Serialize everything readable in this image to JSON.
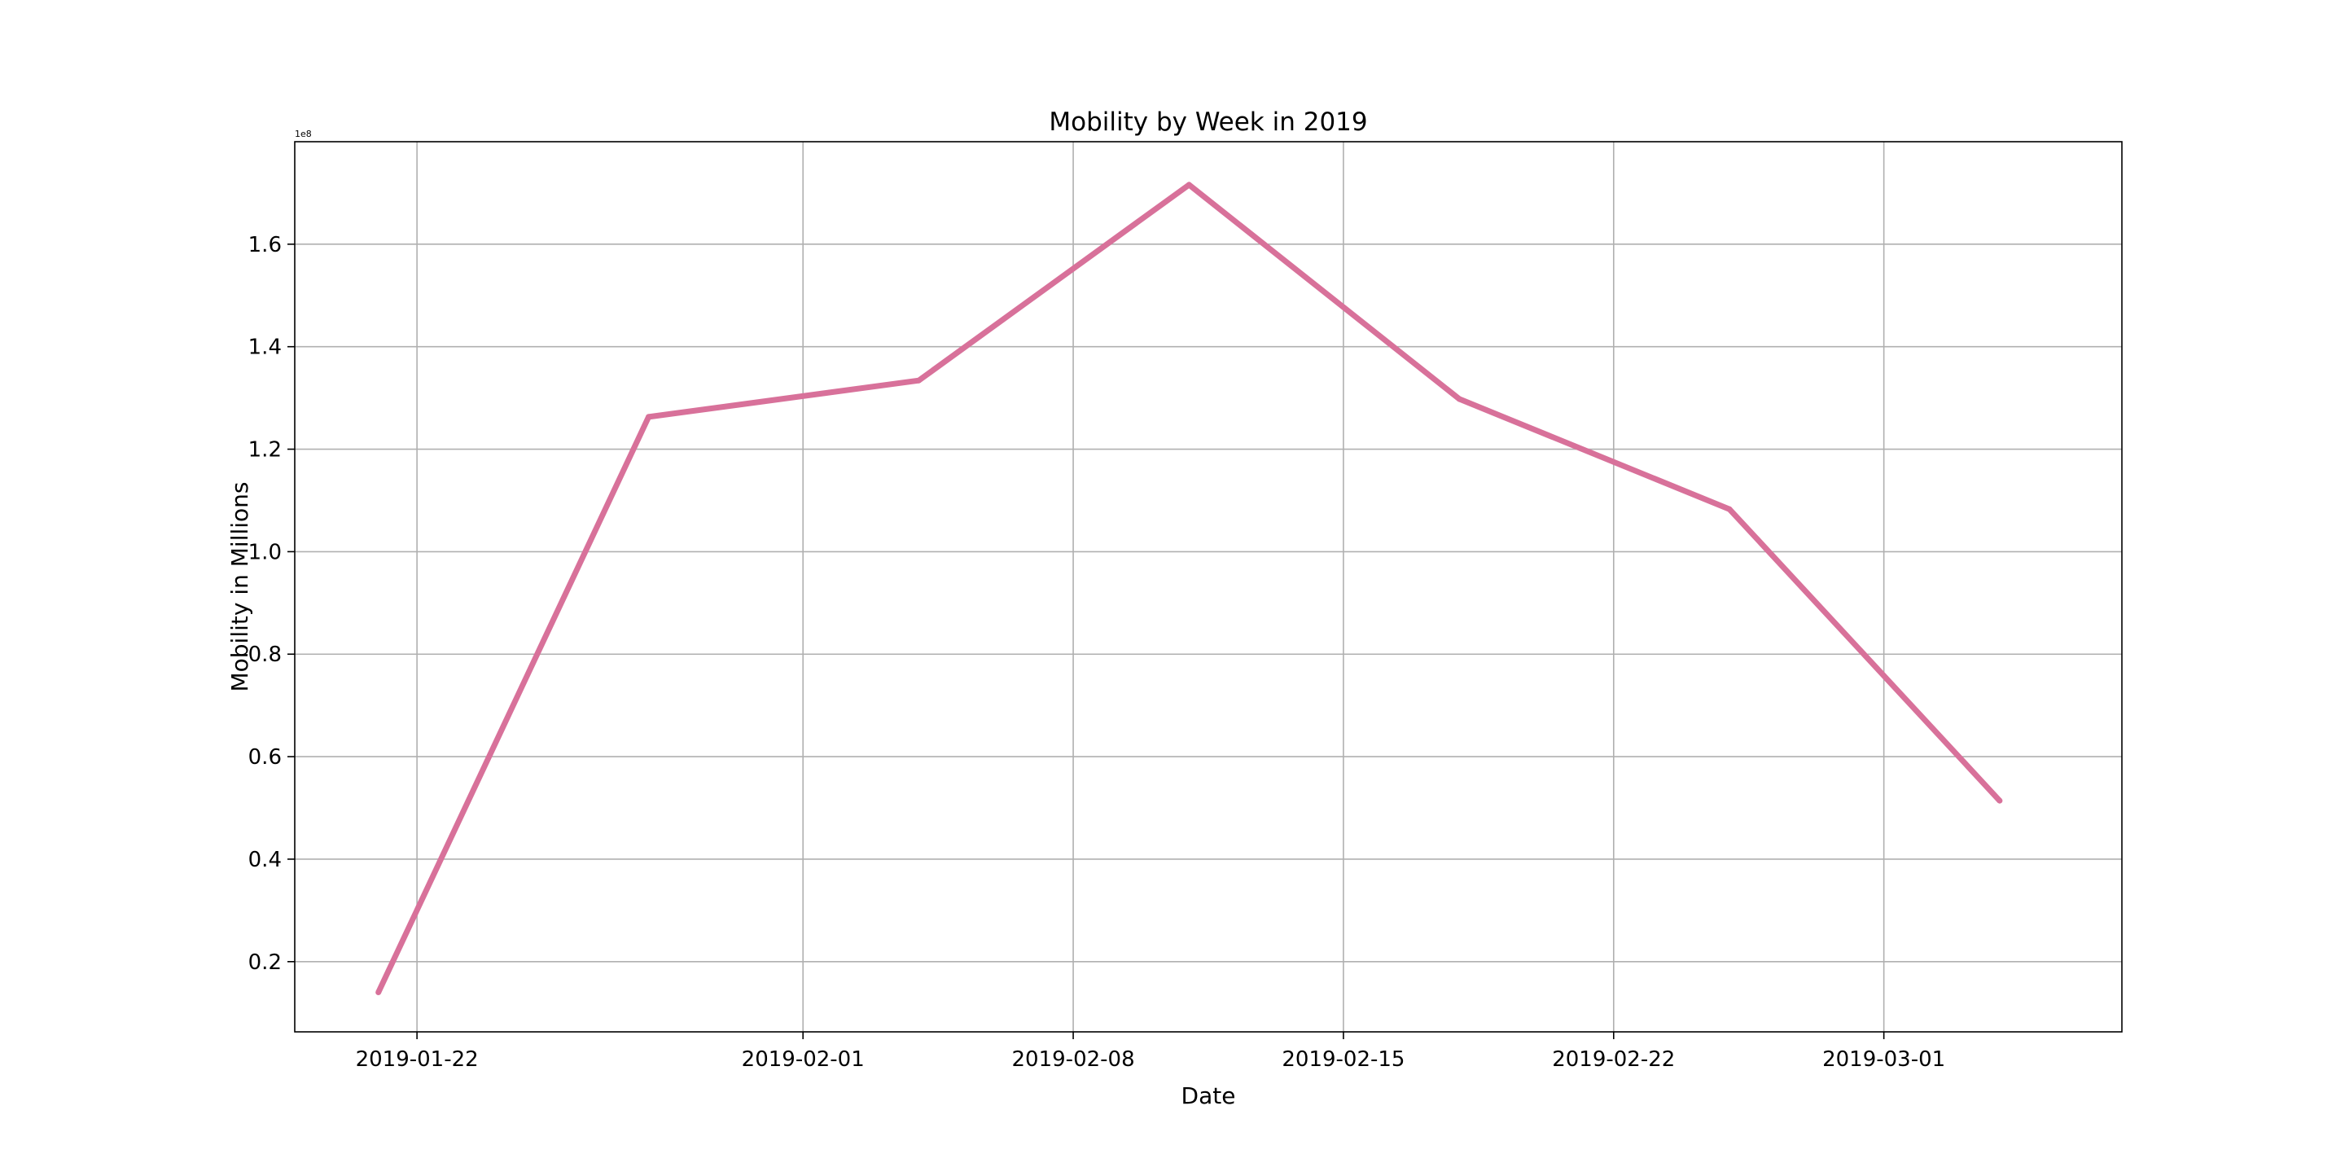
{
  "chart_data": {
    "type": "line",
    "title": "Mobility by Week in 2019",
    "xlabel": "Date",
    "ylabel": "Mobility in Millions",
    "y_offset_label": "1e8",
    "grid": true,
    "x_ticks": [
      "2019-01-22",
      "2019-02-01",
      "2019-02-08",
      "2019-02-15",
      "2019-02-22",
      "2019-03-01"
    ],
    "y_ticks": [
      {
        "value": 20000000,
        "label": "0.2"
      },
      {
        "value": 40000000,
        "label": "0.4"
      },
      {
        "value": 60000000,
        "label": "0.6"
      },
      {
        "value": 80000000,
        "label": "0.8"
      },
      {
        "value": 100000000,
        "label": "1.0"
      },
      {
        "value": 120000000,
        "label": "1.2"
      },
      {
        "value": 140000000,
        "label": "1.4"
      },
      {
        "value": 160000000,
        "label": "1.6"
      }
    ],
    "xlim": [
      "2019-01-18T20:00",
      "2019-03-07T04:00"
    ],
    "ylim": [
      6300000,
      180000000
    ],
    "series": [
      {
        "color": "#d8719a",
        "x": [
          "2019-01-21",
          "2019-01-28",
          "2019-02-04",
          "2019-02-11",
          "2019-02-18",
          "2019-02-25",
          "2019-03-04"
        ],
        "y": [
          14000000,
          126300000,
          133400000,
          171600000,
          129800000,
          108300000,
          51400000
        ]
      }
    ]
  }
}
